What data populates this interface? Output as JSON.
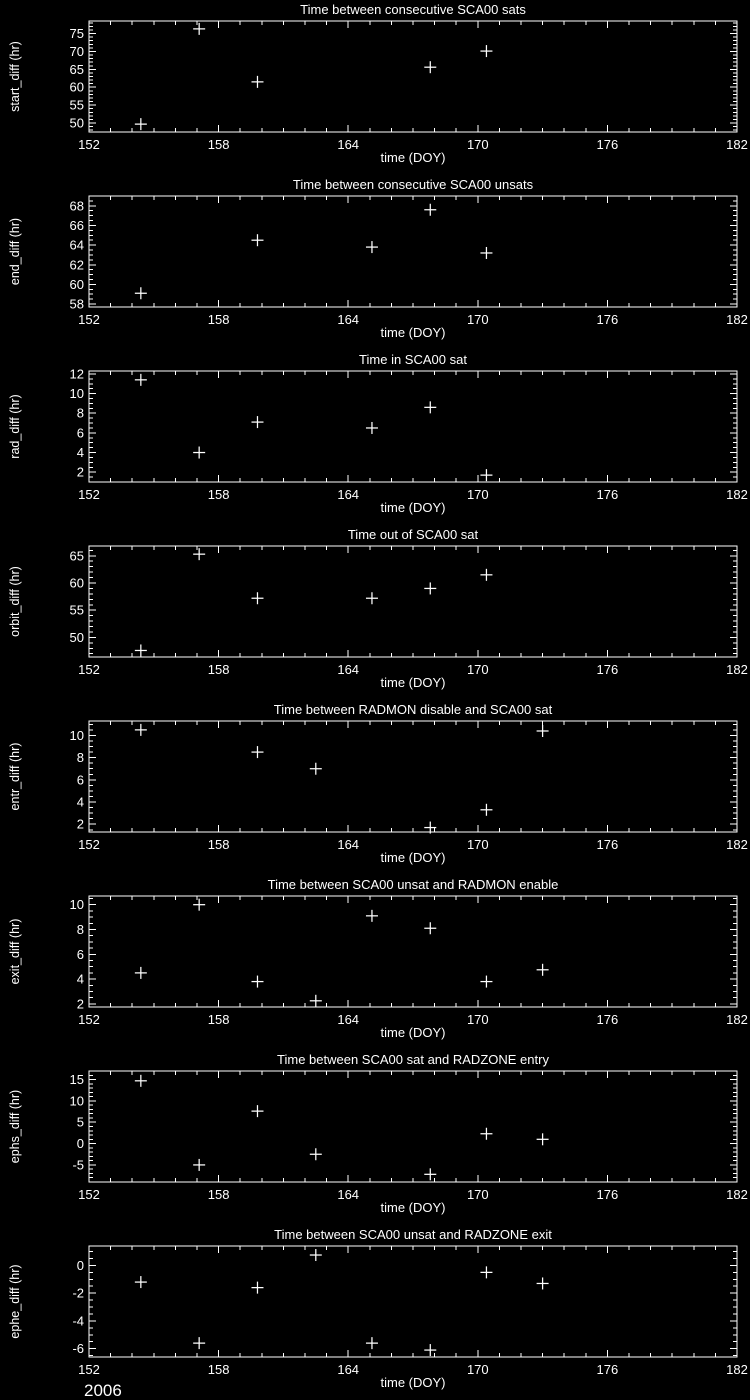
{
  "page": {
    "background": "#000000",
    "foreground": "#ffffff",
    "year_label": "2006"
  },
  "chart_data": [
    {
      "type": "scatter",
      "title": "Time between consecutive SCA00 sats",
      "xlabel": "time (DOY)",
      "ylabel": "start_diff (hr)",
      "marker": "plus",
      "grid": false,
      "xlim": [
        152,
        182
      ],
      "x_major_ticks": [
        152,
        158,
        164,
        170,
        176,
        182
      ],
      "x_minor_step": 1,
      "ylim": [
        47.5,
        78.5
      ],
      "y_major_ticks": [
        50,
        55,
        60,
        65,
        70,
        75
      ],
      "y_minor_step": 1,
      "points": [
        [
          154.4,
          49.7
        ],
        [
          157.1,
          76.3
        ],
        [
          159.8,
          61.5
        ],
        [
          167.8,
          65.6
        ],
        [
          170.4,
          70.1
        ]
      ]
    },
    {
      "type": "scatter",
      "title": "Time between consecutive SCA00 unsats",
      "xlabel": "time (DOY)",
      "ylabel": "end_diff (hr)",
      "marker": "plus",
      "grid": false,
      "xlim": [
        152,
        182
      ],
      "x_major_ticks": [
        152,
        158,
        164,
        170,
        176,
        182
      ],
      "x_minor_step": 1,
      "ylim": [
        57.7,
        69.0
      ],
      "y_major_ticks": [
        58,
        60,
        62,
        64,
        66,
        68
      ],
      "y_minor_step": 0.5,
      "points": [
        [
          154.4,
          59.1
        ],
        [
          159.8,
          64.5
        ],
        [
          165.1,
          63.8
        ],
        [
          167.8,
          67.6
        ],
        [
          170.4,
          63.2
        ]
      ]
    },
    {
      "type": "scatter",
      "title": "Time in SCA00 sat",
      "xlabel": "time (DOY)",
      "ylabel": "rad_diff (hr)",
      "marker": "plus",
      "grid": false,
      "xlim": [
        152,
        182
      ],
      "x_major_ticks": [
        152,
        158,
        164,
        170,
        176,
        182
      ],
      "x_minor_step": 1,
      "ylim": [
        1.0,
        12.3
      ],
      "y_major_ticks": [
        2,
        4,
        6,
        8,
        10,
        12
      ],
      "y_minor_step": 0.5,
      "points": [
        [
          154.4,
          11.4
        ],
        [
          157.1,
          4.0
        ],
        [
          159.8,
          7.1
        ],
        [
          165.1,
          6.5
        ],
        [
          167.8,
          8.6
        ],
        [
          170.4,
          1.7
        ]
      ]
    },
    {
      "type": "scatter",
      "title": "Time out of SCA00 sat",
      "xlabel": "time (DOY)",
      "ylabel": "orbit_diff (hr)",
      "marker": "plus",
      "grid": false,
      "xlim": [
        152,
        182
      ],
      "x_major_ticks": [
        152,
        158,
        164,
        170,
        176,
        182
      ],
      "x_minor_step": 1,
      "ylim": [
        46.4,
        66.8
      ],
      "y_major_ticks": [
        50,
        55,
        60,
        65
      ],
      "y_minor_step": 1,
      "points": [
        [
          154.4,
          47.6
        ],
        [
          157.1,
          65.3
        ],
        [
          159.8,
          57.2
        ],
        [
          165.1,
          57.2
        ],
        [
          167.8,
          59.0
        ],
        [
          170.4,
          61.5
        ]
      ]
    },
    {
      "type": "scatter",
      "title": "Time between RADMON disable and SCA00 sat",
      "xlabel": "time (DOY)",
      "ylabel": "entr_diff (hr)",
      "marker": "plus",
      "grid": false,
      "xlim": [
        152,
        182
      ],
      "x_major_ticks": [
        152,
        158,
        164,
        170,
        176,
        182
      ],
      "x_minor_step": 1,
      "ylim": [
        1.3,
        11.3
      ],
      "y_major_ticks": [
        2,
        4,
        6,
        8,
        10
      ],
      "y_minor_step": 0.5,
      "points": [
        [
          154.4,
          10.5
        ],
        [
          159.8,
          8.5
        ],
        [
          162.5,
          7.0
        ],
        [
          167.8,
          1.7
        ],
        [
          170.4,
          3.3
        ],
        [
          173.0,
          10.4
        ]
      ]
    },
    {
      "type": "scatter",
      "title": "Time between SCA00 unsat and RADMON enable",
      "xlabel": "time (DOY)",
      "ylabel": "exit_diff (hr)",
      "marker": "plus",
      "grid": false,
      "xlim": [
        152,
        182
      ],
      "x_major_ticks": [
        152,
        158,
        164,
        170,
        176,
        182
      ],
      "x_minor_step": 1,
      "ylim": [
        1.75,
        10.7
      ],
      "y_major_ticks": [
        2,
        4,
        6,
        8,
        10
      ],
      "y_minor_step": 0.5,
      "points": [
        [
          154.4,
          4.5
        ],
        [
          157.1,
          10.0
        ],
        [
          159.8,
          3.8
        ],
        [
          162.5,
          2.25
        ],
        [
          165.1,
          9.1
        ],
        [
          167.8,
          8.1
        ],
        [
          170.4,
          3.8
        ],
        [
          173.0,
          4.75
        ]
      ]
    },
    {
      "type": "scatter",
      "title": "Time between SCA00 sat and RADZONE entry",
      "xlabel": "time (DOY)",
      "ylabel": "ephs_diff (hr)",
      "marker": "plus",
      "grid": false,
      "xlim": [
        152,
        182
      ],
      "x_major_ticks": [
        152,
        158,
        164,
        170,
        176,
        182
      ],
      "x_minor_step": 1,
      "ylim": [
        -9.0,
        17.0
      ],
      "y_major_ticks": [
        -5,
        0,
        5,
        10,
        15
      ],
      "y_minor_step": 1,
      "points": [
        [
          154.4,
          14.7
        ],
        [
          157.1,
          -5.0
        ],
        [
          159.8,
          7.6
        ],
        [
          162.5,
          -2.5
        ],
        [
          167.8,
          -7.2
        ],
        [
          170.4,
          2.3
        ],
        [
          173.0,
          1.0
        ]
      ]
    },
    {
      "type": "scatter",
      "title": "Time between SCA00 unsat and RADZONE exit",
      "xlabel": "time (DOY)",
      "ylabel": "ephe_diff (hr)",
      "marker": "plus",
      "grid": false,
      "xlim": [
        152,
        182
      ],
      "x_major_ticks": [
        152,
        158,
        164,
        170,
        176,
        182
      ],
      "x_minor_step": 1,
      "ylim": [
        -6.6,
        1.4
      ],
      "y_major_ticks": [
        -6,
        -4,
        -2,
        0
      ],
      "y_minor_step": 0.5,
      "points": [
        [
          154.4,
          -1.2
        ],
        [
          157.1,
          -5.6
        ],
        [
          159.8,
          -1.6
        ],
        [
          162.5,
          0.75
        ],
        [
          165.1,
          -5.6
        ],
        [
          167.8,
          -6.1
        ],
        [
          170.4,
          -0.5
        ],
        [
          173.0,
          -1.3
        ]
      ]
    }
  ]
}
